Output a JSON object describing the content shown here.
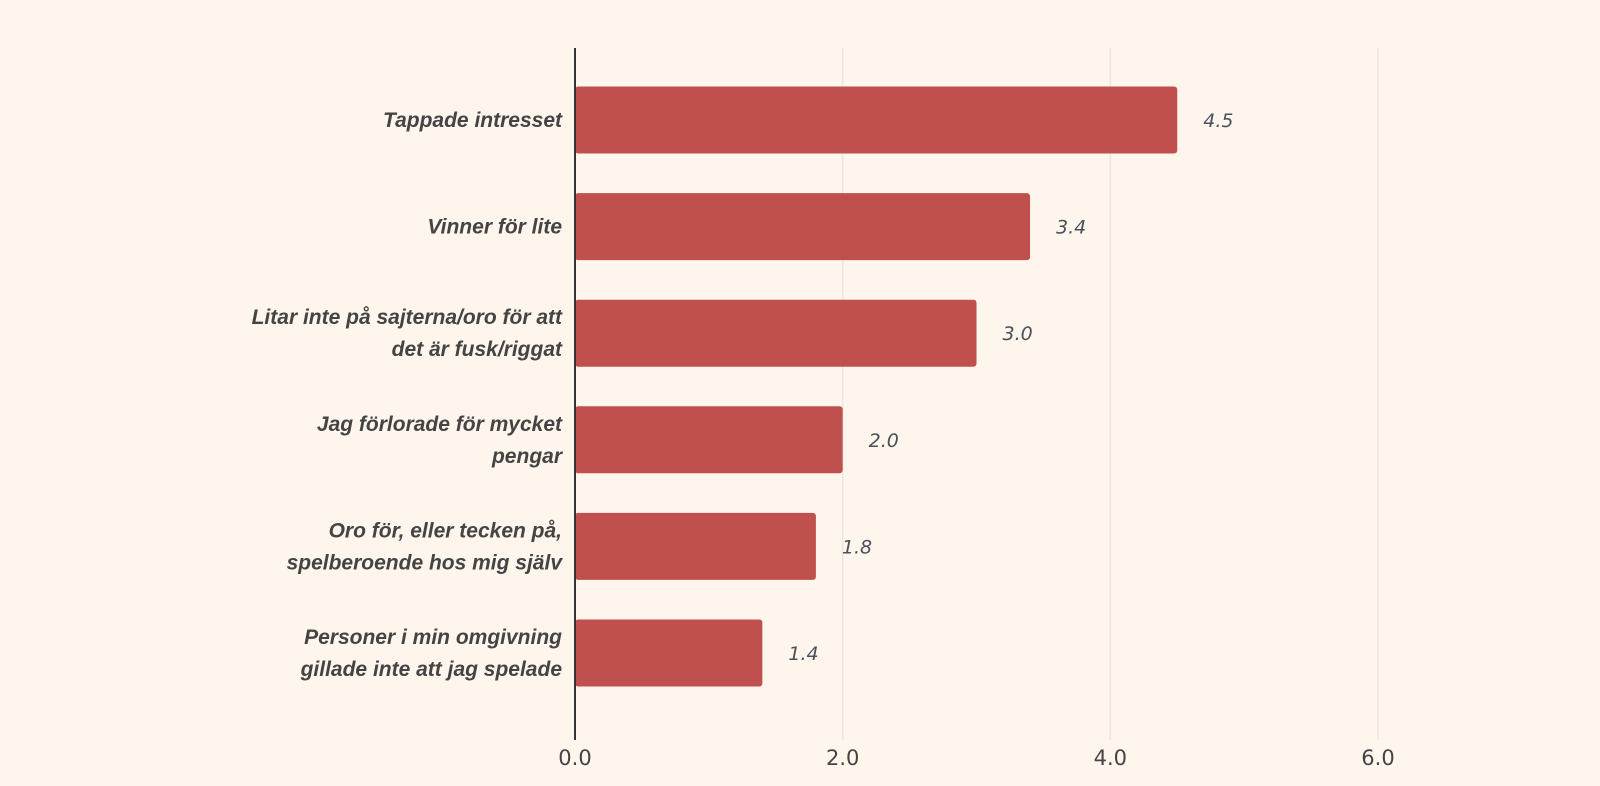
{
  "chart_data": {
    "type": "bar",
    "orientation": "horizontal",
    "categories": [
      "Tappade intresset",
      "Vinner för lite",
      "Litar inte på sajterna/oro för att det är fusk/riggat",
      "Jag förlorade för mycket pengar",
      "Oro för, eller tecken på, spelberoende hos mig själv",
      "Personer i min omgivning gillade inte att jag spelade"
    ],
    "category_lines": [
      [
        "Tappade intresset"
      ],
      [
        "Vinner för lite"
      ],
      [
        "Litar inte på sajterna/oro för att",
        "det är fusk/riggat"
      ],
      [
        "Jag förlorade för mycket",
        "pengar"
      ],
      [
        "Oro för, eller tecken på,",
        "spelberoende hos mig själv"
      ],
      [
        "Personer i min omgivning",
        "gillade inte att jag spelade"
      ]
    ],
    "values": [
      4.5,
      3.4,
      3.0,
      2.0,
      1.8,
      1.4
    ],
    "value_labels": [
      "4.5",
      "3.4",
      "3.0",
      "2.0",
      "1.8",
      "1.4"
    ],
    "xlim": [
      0,
      6
    ],
    "xticks": [
      0,
      2,
      4,
      6
    ],
    "xtick_labels": [
      "0.0",
      "2.0",
      "4.0",
      "6.0"
    ],
    "grid": true,
    "legend": "none",
    "colors": {
      "bar": "#c0504d",
      "background": "#fef5ec",
      "grid": "#ece6df",
      "axis": "#333333"
    }
  }
}
